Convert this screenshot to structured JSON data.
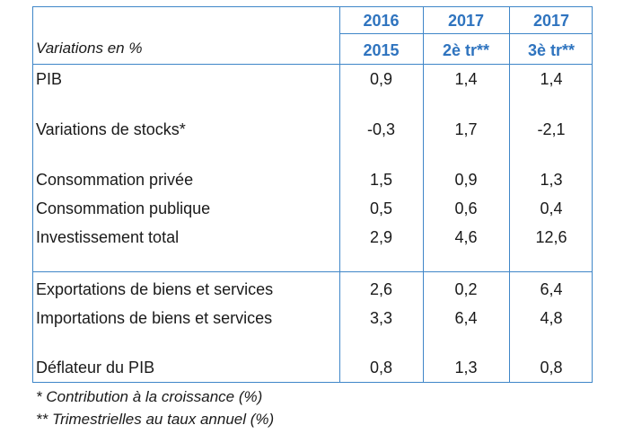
{
  "table": {
    "caption": "Variations en %",
    "columns": [
      {
        "top": "2016",
        "bottom": "2015"
      },
      {
        "top": "2017",
        "bottom": "2è tr**"
      },
      {
        "top": "2017",
        "bottom": "3è tr**"
      }
    ],
    "rows": [
      {
        "label": "PIB",
        "values": [
          "0,9",
          "1,4",
          "1,4"
        ]
      },
      {
        "label": "Variations de stocks*",
        "values": [
          "-0,3",
          "1,7",
          "-2,1"
        ]
      },
      {
        "label": "Consommation privée",
        "values": [
          "1,5",
          "0,9",
          "1,3"
        ]
      },
      {
        "label": "Consommation publique",
        "values": [
          "0,5",
          "0,6",
          "0,4"
        ]
      },
      {
        "label": "Investissement total",
        "values": [
          "2,9",
          "4,6",
          "12,6"
        ]
      },
      {
        "label": "Exportations de biens et services",
        "values": [
          "2,6",
          "0,2",
          "6,4"
        ]
      },
      {
        "label": "Importations de biens et services",
        "values": [
          "3,3",
          "6,4",
          "4,8"
        ]
      },
      {
        "label": "Déflateur du PIB",
        "values": [
          "0,8",
          "1,3",
          "0,8"
        ]
      }
    ]
  },
  "notes": [
    "* Contribution à la croissance (%)",
    "** Trimestrielles au taux annuel  (%)"
  ],
  "colors": {
    "accent": "#2f74bf",
    "border": "#3f86c8"
  }
}
